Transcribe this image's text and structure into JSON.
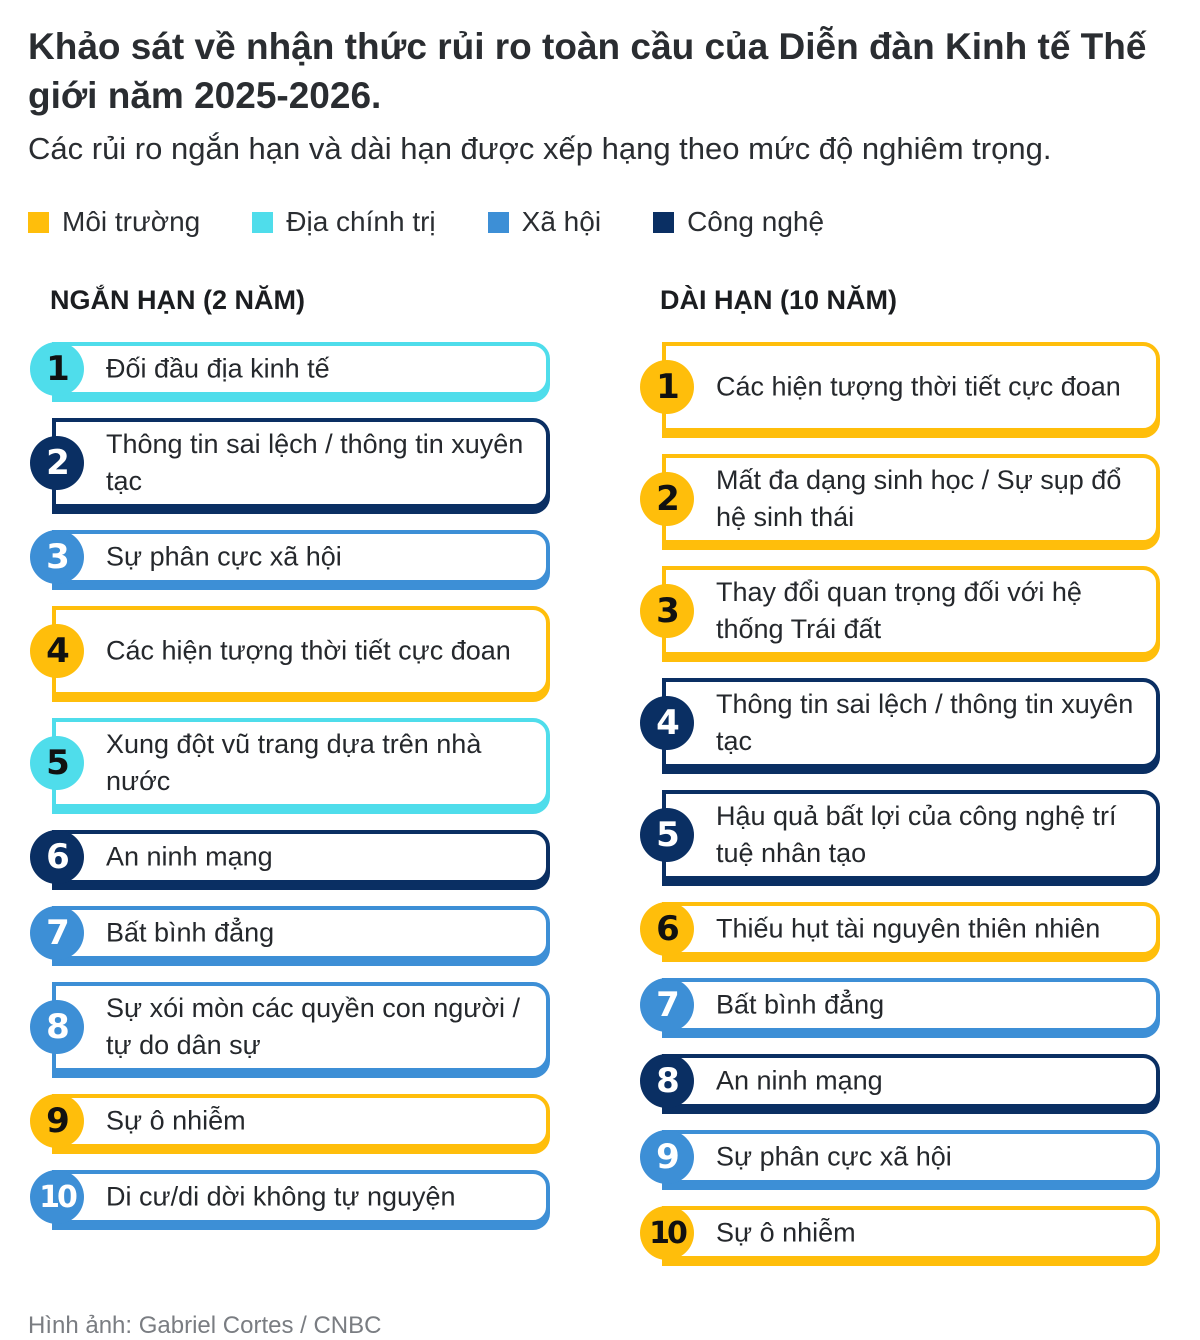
{
  "title": "Khảo sát về nhận thức rủi ro toàn cầu của Diễn đàn Kinh tế Thế giới năm 2025-2026.",
  "subtitle": "Các rủi ro ngắn hạn và dài hạn được xếp hạng theo mức độ nghiêm trọng.",
  "legend": [
    {
      "label": "Môi trường",
      "color": "#FFBE0B",
      "category": "environmental"
    },
    {
      "label": "Địa chính trị",
      "color": "#4FDDEB",
      "category": "geopolitical"
    },
    {
      "label": "Xã hội",
      "color": "#3D8FD6",
      "category": "societal"
    },
    {
      "label": "Công nghệ",
      "color": "#0A2F63",
      "category": "technological"
    }
  ],
  "colors": {
    "environmental": "#FFBE0B",
    "geopolitical": "#4FDDEB",
    "societal": "#3D8FD6",
    "technological": "#0A2F63"
  },
  "short_term": {
    "heading": "NGẮN HẠN (2 NĂM)",
    "items": [
      {
        "rank": "1",
        "label": "Đối đầu địa kinh tế",
        "category": "geopolitical"
      },
      {
        "rank": "2",
        "label": "Thông tin sai lệch / thông tin xuyên tạc",
        "category": "technological"
      },
      {
        "rank": "3",
        "label": "Sự phân cực xã hội",
        "category": "societal"
      },
      {
        "rank": "4",
        "label": "Các hiện tượng thời tiết cực đoan",
        "category": "environmental"
      },
      {
        "rank": "5",
        "label": "Xung đột vũ trang dựa trên nhà nước",
        "category": "geopolitical"
      },
      {
        "rank": "6",
        "label": "An ninh mạng",
        "category": "technological"
      },
      {
        "rank": "7",
        "label": "Bất bình đẳng",
        "category": "societal"
      },
      {
        "rank": "8",
        "label": "Sự xói mòn các quyền con người / tự do dân sự",
        "category": "societal"
      },
      {
        "rank": "9",
        "label": "Sự ô nhiễm",
        "category": "environmental"
      },
      {
        "rank": "10",
        "label": "Di cư/di dời không tự nguyện",
        "category": "societal"
      }
    ]
  },
  "long_term": {
    "heading": "DÀI HẠN (10 NĂM)",
    "items": [
      {
        "rank": "1",
        "label": "Các hiện tượng thời tiết cực đoan",
        "category": "environmental"
      },
      {
        "rank": "2",
        "label": "Mất đa dạng sinh học / Sự sụp đổ hệ sinh thái",
        "category": "environmental"
      },
      {
        "rank": "3",
        "label": "Thay đổi quan trọng đối với hệ thống Trái đất",
        "category": "environmental"
      },
      {
        "rank": "4",
        "label": "Thông tin sai lệch / thông tin xuyên tạc",
        "category": "technological"
      },
      {
        "rank": "5",
        "label": "Hậu quả bất lợi của công nghệ trí tuệ nhân tạo",
        "category": "technological"
      },
      {
        "rank": "6",
        "label": "Thiếu hụt tài nguyên thiên nhiên",
        "category": "environmental"
      },
      {
        "rank": "7",
        "label": "Bất bình đẳng",
        "category": "societal"
      },
      {
        "rank": "8",
        "label": "An ninh mạng",
        "category": "technological"
      },
      {
        "rank": "9",
        "label": "Sự phân cực xã hội",
        "category": "societal"
      },
      {
        "rank": "10",
        "label": "Sự ô nhiễm",
        "category": "environmental"
      }
    ]
  },
  "credit": "Hình ảnh: Gabriel Cortes / CNBC"
}
